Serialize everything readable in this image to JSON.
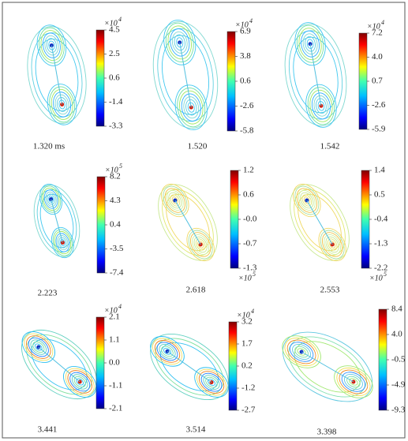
{
  "panels": [
    {
      "label": "1.320 ms",
      "colorbar": {
        "multiplier": "×10",
        "exponent": "4",
        "ticks": [
          "4.5",
          "2.5",
          "0.6",
          "-1.4",
          "-3.3"
        ]
      }
    },
    {
      "label": "1.520",
      "colorbar": {
        "multiplier": "×10",
        "exponent": "4",
        "ticks": [
          "6.9",
          "3.8",
          "0.6",
          "-2.6",
          "-5.8"
        ]
      }
    },
    {
      "label": "1.542",
      "colorbar": {
        "multiplier": "×10",
        "exponent": "4",
        "ticks": [
          "7.2",
          "4.0",
          "0.7",
          "-2.6",
          "-5.9"
        ]
      }
    },
    {
      "label": "2.223",
      "colorbar": {
        "multiplier": "×10",
        "exponent": "5",
        "ticks": [
          "8.2",
          "4.3",
          "0.4",
          "-3.5",
          "-7.4"
        ]
      }
    },
    {
      "label": "2.618",
      "colorbar": {
        "multiplier": "×10",
        "exponent": "5",
        "ticks": [
          "1.2",
          "0.6",
          "-0.0",
          "-0.7",
          "-1.3"
        ]
      }
    },
    {
      "label": "2.553",
      "colorbar": {
        "multiplier": "×10",
        "exponent": "5",
        "ticks": [
          "1.4",
          "0.5",
          "-0.4",
          "-1.3",
          "-2.2"
        ]
      }
    },
    {
      "label": "3.441",
      "colorbar": {
        "multiplier": "×10",
        "exponent": "4",
        "ticks": [
          "2.1",
          "1.1",
          "0.0",
          "-1.1",
          "-2.1"
        ]
      }
    },
    {
      "label": "3.514",
      "colorbar": {
        "multiplier": "×10",
        "exponent": "4",
        "ticks": [
          "3.2",
          "1.7",
          "0.2",
          "-1.2",
          "-2.7"
        ]
      }
    },
    {
      "label": "3.398",
      "colorbar": {
        "ticks": [
          "8.4",
          "4.0",
          "-0.5",
          "-4.9",
          "-9.3"
        ]
      }
    }
  ]
}
